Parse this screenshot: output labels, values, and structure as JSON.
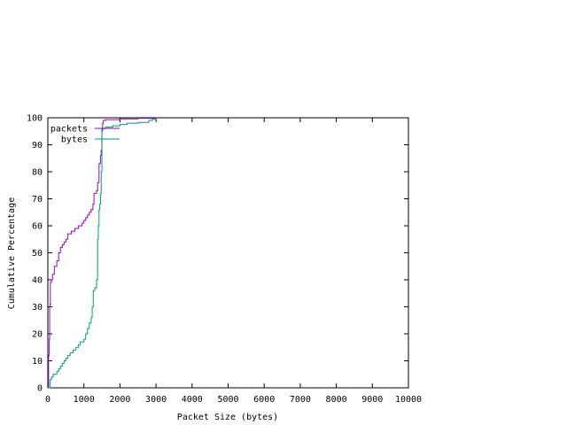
{
  "chart_data": {
    "type": "line",
    "title": "",
    "xlabel": "Packet Size (bytes)",
    "ylabel": "Cumulative Percentage",
    "xlim": [
      0,
      10000
    ],
    "ylim": [
      0,
      100
    ],
    "x_ticks": [
      0,
      1000,
      2000,
      3000,
      4000,
      5000,
      6000,
      7000,
      8000,
      9000,
      10000
    ],
    "x_tick_labels": [
      "0",
      "1000",
      "2000",
      "3000",
      "4000",
      "5000",
      "6000",
      "7000",
      "8000",
      "9000",
      "10000"
    ],
    "y_ticks": [
      0,
      10,
      20,
      30,
      40,
      50,
      60,
      70,
      80,
      90,
      100
    ],
    "y_tick_labels": [
      "0",
      "10",
      "20",
      "30",
      "40",
      "50",
      "60",
      "70",
      "80",
      "90",
      "100"
    ],
    "grid": false,
    "legend_position": "top-left",
    "series": [
      {
        "name": "packets",
        "color": "#9400d3",
        "points": [
          [
            0,
            0
          ],
          [
            20,
            12
          ],
          [
            40,
            18
          ],
          [
            50,
            30
          ],
          [
            60,
            31
          ],
          [
            70,
            39
          ],
          [
            100,
            40
          ],
          [
            130,
            42
          ],
          [
            180,
            45
          ],
          [
            250,
            47
          ],
          [
            300,
            50
          ],
          [
            350,
            52
          ],
          [
            400,
            53
          ],
          [
            450,
            54
          ],
          [
            500,
            55
          ],
          [
            550,
            57
          ],
          [
            650,
            58
          ],
          [
            750,
            59
          ],
          [
            850,
            60
          ],
          [
            950,
            61
          ],
          [
            1000,
            62
          ],
          [
            1050,
            63
          ],
          [
            1100,
            64
          ],
          [
            1150,
            65
          ],
          [
            1200,
            66
          ],
          [
            1250,
            68
          ],
          [
            1280,
            72
          ],
          [
            1350,
            73
          ],
          [
            1380,
            76
          ],
          [
            1420,
            83
          ],
          [
            1460,
            86
          ],
          [
            1480,
            88
          ],
          [
            1500,
            96
          ],
          [
            1520,
            98
          ],
          [
            1540,
            99
          ],
          [
            1600,
            99.3
          ],
          [
            2000,
            99.6
          ],
          [
            2500,
            99.8
          ],
          [
            3000,
            100
          ]
        ]
      },
      {
        "name": "bytes",
        "color": "#009e73",
        "points": [
          [
            0,
            0
          ],
          [
            60,
            3
          ],
          [
            100,
            4
          ],
          [
            150,
            5
          ],
          [
            250,
            6
          ],
          [
            300,
            7
          ],
          [
            350,
            8
          ],
          [
            400,
            9
          ],
          [
            450,
            10
          ],
          [
            500,
            11
          ],
          [
            550,
            12
          ],
          [
            620,
            13
          ],
          [
            700,
            14
          ],
          [
            780,
            15
          ],
          [
            850,
            16
          ],
          [
            900,
            17
          ],
          [
            1000,
            18
          ],
          [
            1050,
            20
          ],
          [
            1100,
            22
          ],
          [
            1150,
            24
          ],
          [
            1200,
            26
          ],
          [
            1230,
            30
          ],
          [
            1260,
            36
          ],
          [
            1300,
            37
          ],
          [
            1350,
            40
          ],
          [
            1380,
            55
          ],
          [
            1400,
            60
          ],
          [
            1420,
            66
          ],
          [
            1440,
            68
          ],
          [
            1460,
            72
          ],
          [
            1480,
            80
          ],
          [
            1500,
            95
          ],
          [
            1520,
            96
          ],
          [
            1600,
            96.5
          ],
          [
            1800,
            97
          ],
          [
            2000,
            97.5
          ],
          [
            2200,
            98
          ],
          [
            2500,
            98.3
          ],
          [
            2800,
            99
          ],
          [
            2900,
            99.5
          ],
          [
            3000,
            100
          ]
        ]
      }
    ]
  }
}
